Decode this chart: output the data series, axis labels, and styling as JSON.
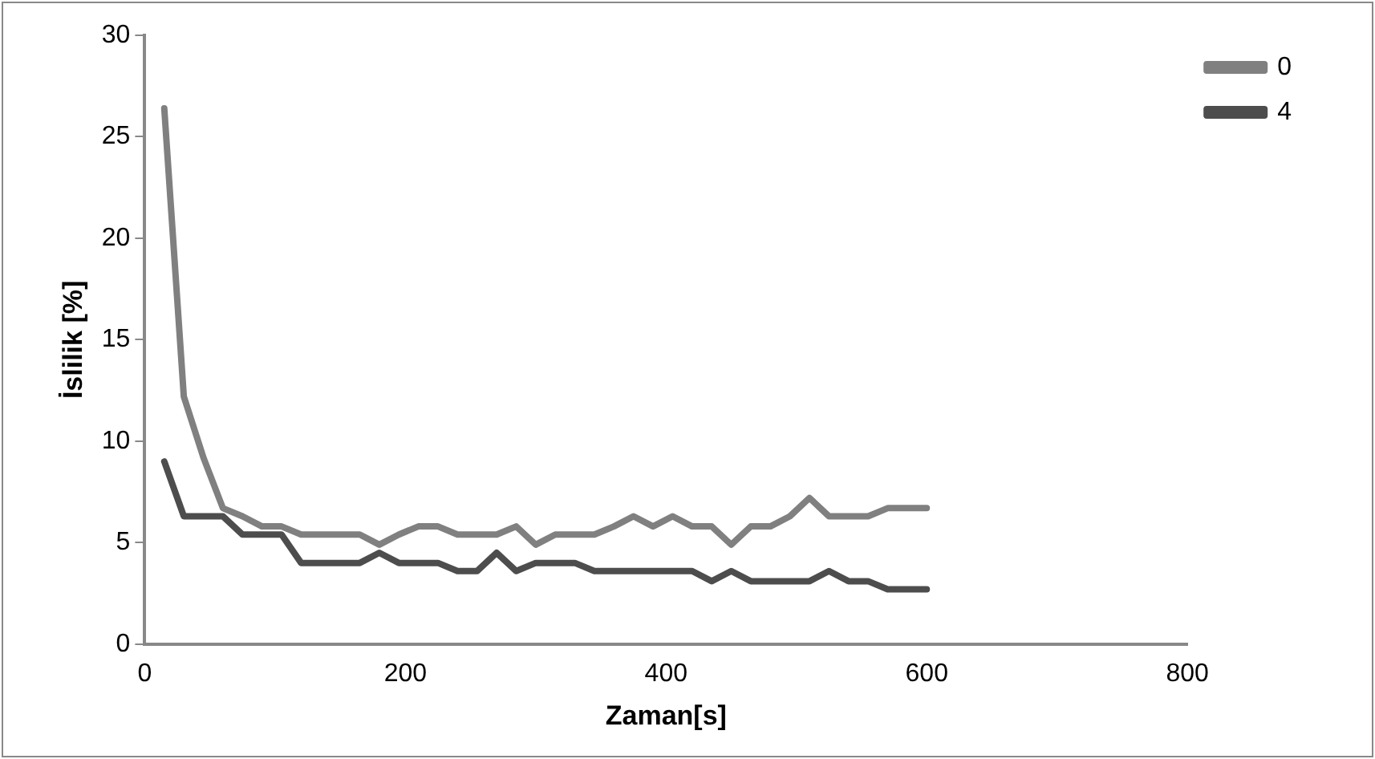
{
  "chart_data": {
    "type": "line",
    "xlabel": "Zaman[s]",
    "ylabel": "İslilik [%]",
    "x": [
      15,
      30,
      45,
      60,
      75,
      90,
      105,
      120,
      135,
      150,
      165,
      180,
      195,
      210,
      225,
      240,
      255,
      270,
      285,
      300,
      315,
      330,
      345,
      360,
      375,
      390,
      405,
      420,
      435,
      450,
      465,
      480,
      495,
      510,
      525,
      540,
      555,
      570,
      585,
      600
    ],
    "series": [
      {
        "name": "0",
        "color": "#808080",
        "values": [
          26.4,
          12.2,
          9.2,
          6.7,
          6.3,
          5.8,
          5.8,
          5.4,
          5.4,
          5.4,
          5.4,
          4.9,
          5.4,
          5.8,
          5.8,
          5.4,
          5.4,
          5.4,
          5.8,
          4.9,
          5.4,
          5.4,
          5.4,
          5.8,
          6.3,
          5.8,
          6.3,
          5.8,
          5.8,
          4.9,
          5.8,
          5.8,
          6.3,
          7.2,
          6.3,
          6.3,
          6.3,
          6.7,
          6.7,
          6.7
        ]
      },
      {
        "name": "4",
        "color": "#4d4d4d",
        "values": [
          9.0,
          6.3,
          6.3,
          6.3,
          5.4,
          5.4,
          5.4,
          4.0,
          4.0,
          4.0,
          4.0,
          4.5,
          4.0,
          4.0,
          4.0,
          3.6,
          3.6,
          4.5,
          3.6,
          4.0,
          4.0,
          4.0,
          3.6,
          3.6,
          3.6,
          3.6,
          3.6,
          3.6,
          3.1,
          3.6,
          3.1,
          3.1,
          3.1,
          3.1,
          3.6,
          3.1,
          3.1,
          2.7,
          2.7,
          2.7
        ]
      }
    ],
    "xlim": [
      0,
      800
    ],
    "xticks": [
      0,
      200,
      400,
      600,
      800
    ],
    "ylim": [
      0,
      30
    ],
    "yticks": [
      0,
      5,
      10,
      15,
      20,
      25,
      30
    ],
    "grid": false,
    "legend": "top right",
    "marker": "none",
    "line_style": "solid"
  }
}
